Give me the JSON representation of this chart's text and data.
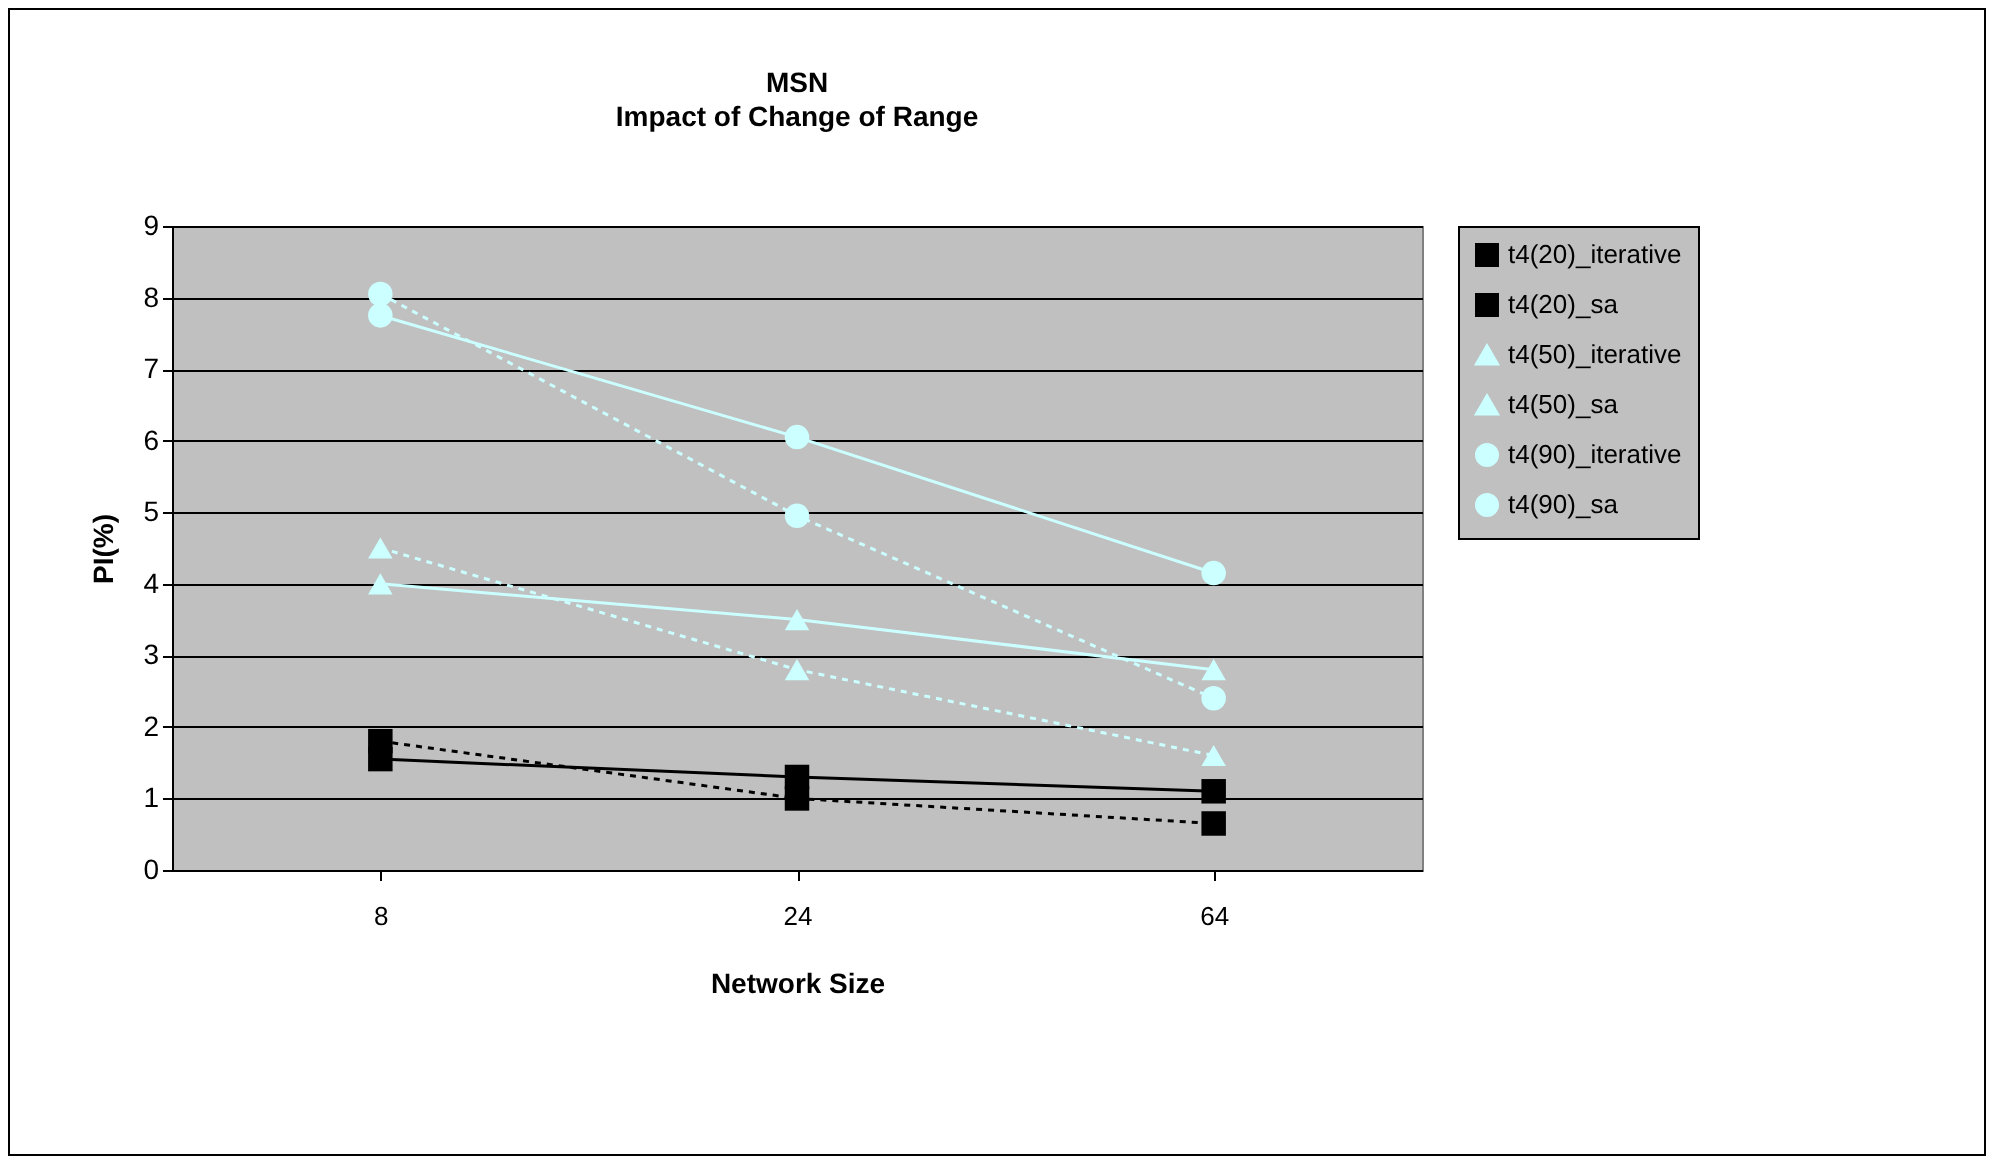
{
  "chart_data": {
    "type": "line",
    "title": "MSN",
    "subtitle": "Impact of Change of Range",
    "xlabel": "Network Size",
    "ylabel": "PI(%)",
    "categories": [
      "8",
      "24",
      "64"
    ],
    "series": [
      {
        "name": "t4(20)_iterative",
        "color": "#000000",
        "marker": "square",
        "line_style": "dotted",
        "values": [
          1.8,
          1.0,
          0.65
        ]
      },
      {
        "name": "t4(20)_sa",
        "color": "#000000",
        "marker": "square",
        "line_style": "solid",
        "values": [
          1.55,
          1.3,
          1.1
        ]
      },
      {
        "name": "t4(50)_iterative",
        "color": "#ccffff",
        "marker": "triangle",
        "line_style": "dotted",
        "values": [
          4.5,
          2.8,
          1.6
        ]
      },
      {
        "name": "t4(50)_sa",
        "color": "#ccffff",
        "marker": "triangle",
        "line_style": "solid",
        "values": [
          4.0,
          3.5,
          2.8
        ]
      },
      {
        "name": "t4(90)_iterative",
        "color": "#ccffff",
        "marker": "circle",
        "line_style": "dotted",
        "values": [
          8.05,
          4.95,
          2.4
        ]
      },
      {
        "name": "t4(90)_sa",
        "color": "#ccffff",
        "marker": "circle",
        "line_style": "solid",
        "values": [
          7.75,
          6.05,
          4.15
        ]
      }
    ],
    "ylim": [
      0,
      9
    ],
    "yticks": [
      0,
      1,
      2,
      3,
      4,
      5,
      6,
      7,
      8,
      9
    ],
    "grid": "y",
    "legend": "right"
  }
}
